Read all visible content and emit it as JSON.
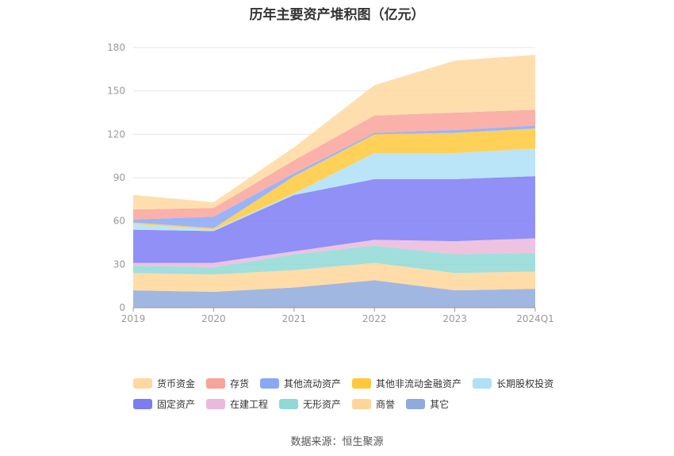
{
  "chart_data": {
    "type": "area",
    "stacked": true,
    "title": "历年主要资产堆积图（亿元）",
    "categories": [
      "2019",
      "2020",
      "2021",
      "2022",
      "2023",
      "2024Q1"
    ],
    "yticks": [
      0,
      30,
      60,
      90,
      120,
      150,
      180
    ],
    "ylim": [
      0,
      180
    ],
    "grid": true,
    "series": [
      {
        "name": "其它",
        "color": "#8faadc",
        "values": [
          12,
          11,
          14,
          19,
          12,
          13
        ]
      },
      {
        "name": "商誉",
        "color": "#ffd699",
        "values": [
          12,
          12,
          12,
          12,
          12,
          12
        ]
      },
      {
        "name": "无形资产",
        "color": "#8fd9d6",
        "values": [
          5,
          5,
          11,
          12,
          13,
          13
        ]
      },
      {
        "name": "在建工程",
        "color": "#ebb9dc",
        "values": [
          2,
          3,
          2,
          4,
          9,
          10
        ]
      },
      {
        "name": "固定资产",
        "color": "#7c7cf5",
        "values": [
          23,
          22,
          39,
          42,
          43,
          43
        ]
      },
      {
        "name": "长期股权投资",
        "color": "#aee0f7",
        "values": [
          4,
          1,
          1,
          18,
          18,
          19
        ]
      },
      {
        "name": "其他非流动金融资产",
        "color": "#ffc93b",
        "values": [
          1,
          1,
          12,
          13,
          14,
          14
        ]
      },
      {
        "name": "其他流动资产",
        "color": "#8aa7f7",
        "values": [
          2,
          8,
          2,
          1,
          2,
          2
        ]
      },
      {
        "name": "存货",
        "color": "#f9a39a",
        "values": [
          7,
          6,
          9,
          12,
          12,
          11
        ]
      },
      {
        "name": "货币资金",
        "color": "#ffd8a0",
        "values": [
          10,
          4,
          9,
          21,
          36,
          38
        ]
      }
    ],
    "legend": [
      [
        "货币资金",
        "存货",
        "其他流动资产",
        "其他非流动金融资产",
        "长期股权投资"
      ],
      [
        "固定资产",
        "在建工程",
        "无形资产",
        "商誉",
        "其它"
      ]
    ]
  },
  "footer": {
    "source": "数据来源：恒生聚源"
  }
}
